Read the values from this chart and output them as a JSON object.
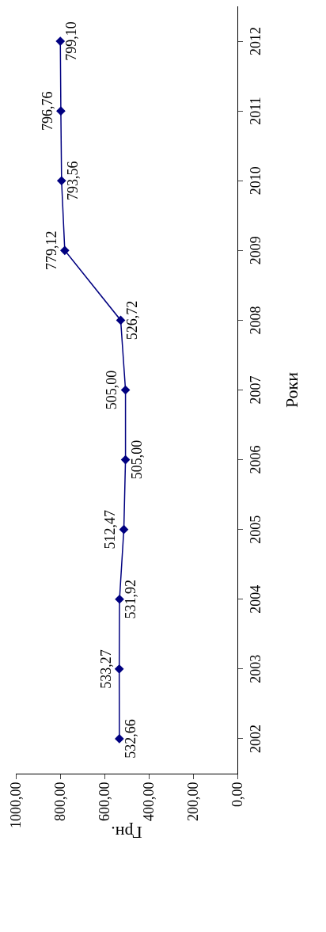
{
  "chart_data": {
    "type": "line",
    "orientation": "horizontal",
    "xlabel": "Грн.",
    "ylabel": "Роки",
    "categories": [
      "2012",
      "2011",
      "2010",
      "2009",
      "2008",
      "2007",
      "2006",
      "2005",
      "2004",
      "2003",
      "2002"
    ],
    "series": [
      {
        "color": "#000080",
        "values": [
          799.1,
          796.76,
          793.56,
          779.12,
          526.72,
          505.0,
          505.0,
          512.47,
          531.92,
          533.27,
          532.66
        ],
        "value_labels": [
          "799,10",
          "796,76",
          "793,56",
          "779,12",
          "526,72",
          "505,00",
          "505,00",
          "512,47",
          "531,92",
          "533,27",
          "532,66"
        ]
      }
    ],
    "xlim": [
      1000,
      0
    ],
    "xticks": [
      {
        "value": 1000,
        "label": "1000,00"
      },
      {
        "value": 800,
        "label": "800,00"
      },
      {
        "value": 600,
        "label": "600,00"
      },
      {
        "value": 400,
        "label": "400,00"
      },
      {
        "value": 200,
        "label": "200,00"
      },
      {
        "value": 0,
        "label": "0,00"
      }
    ],
    "grid": false,
    "marker": "diamond",
    "line_style": "solid"
  }
}
